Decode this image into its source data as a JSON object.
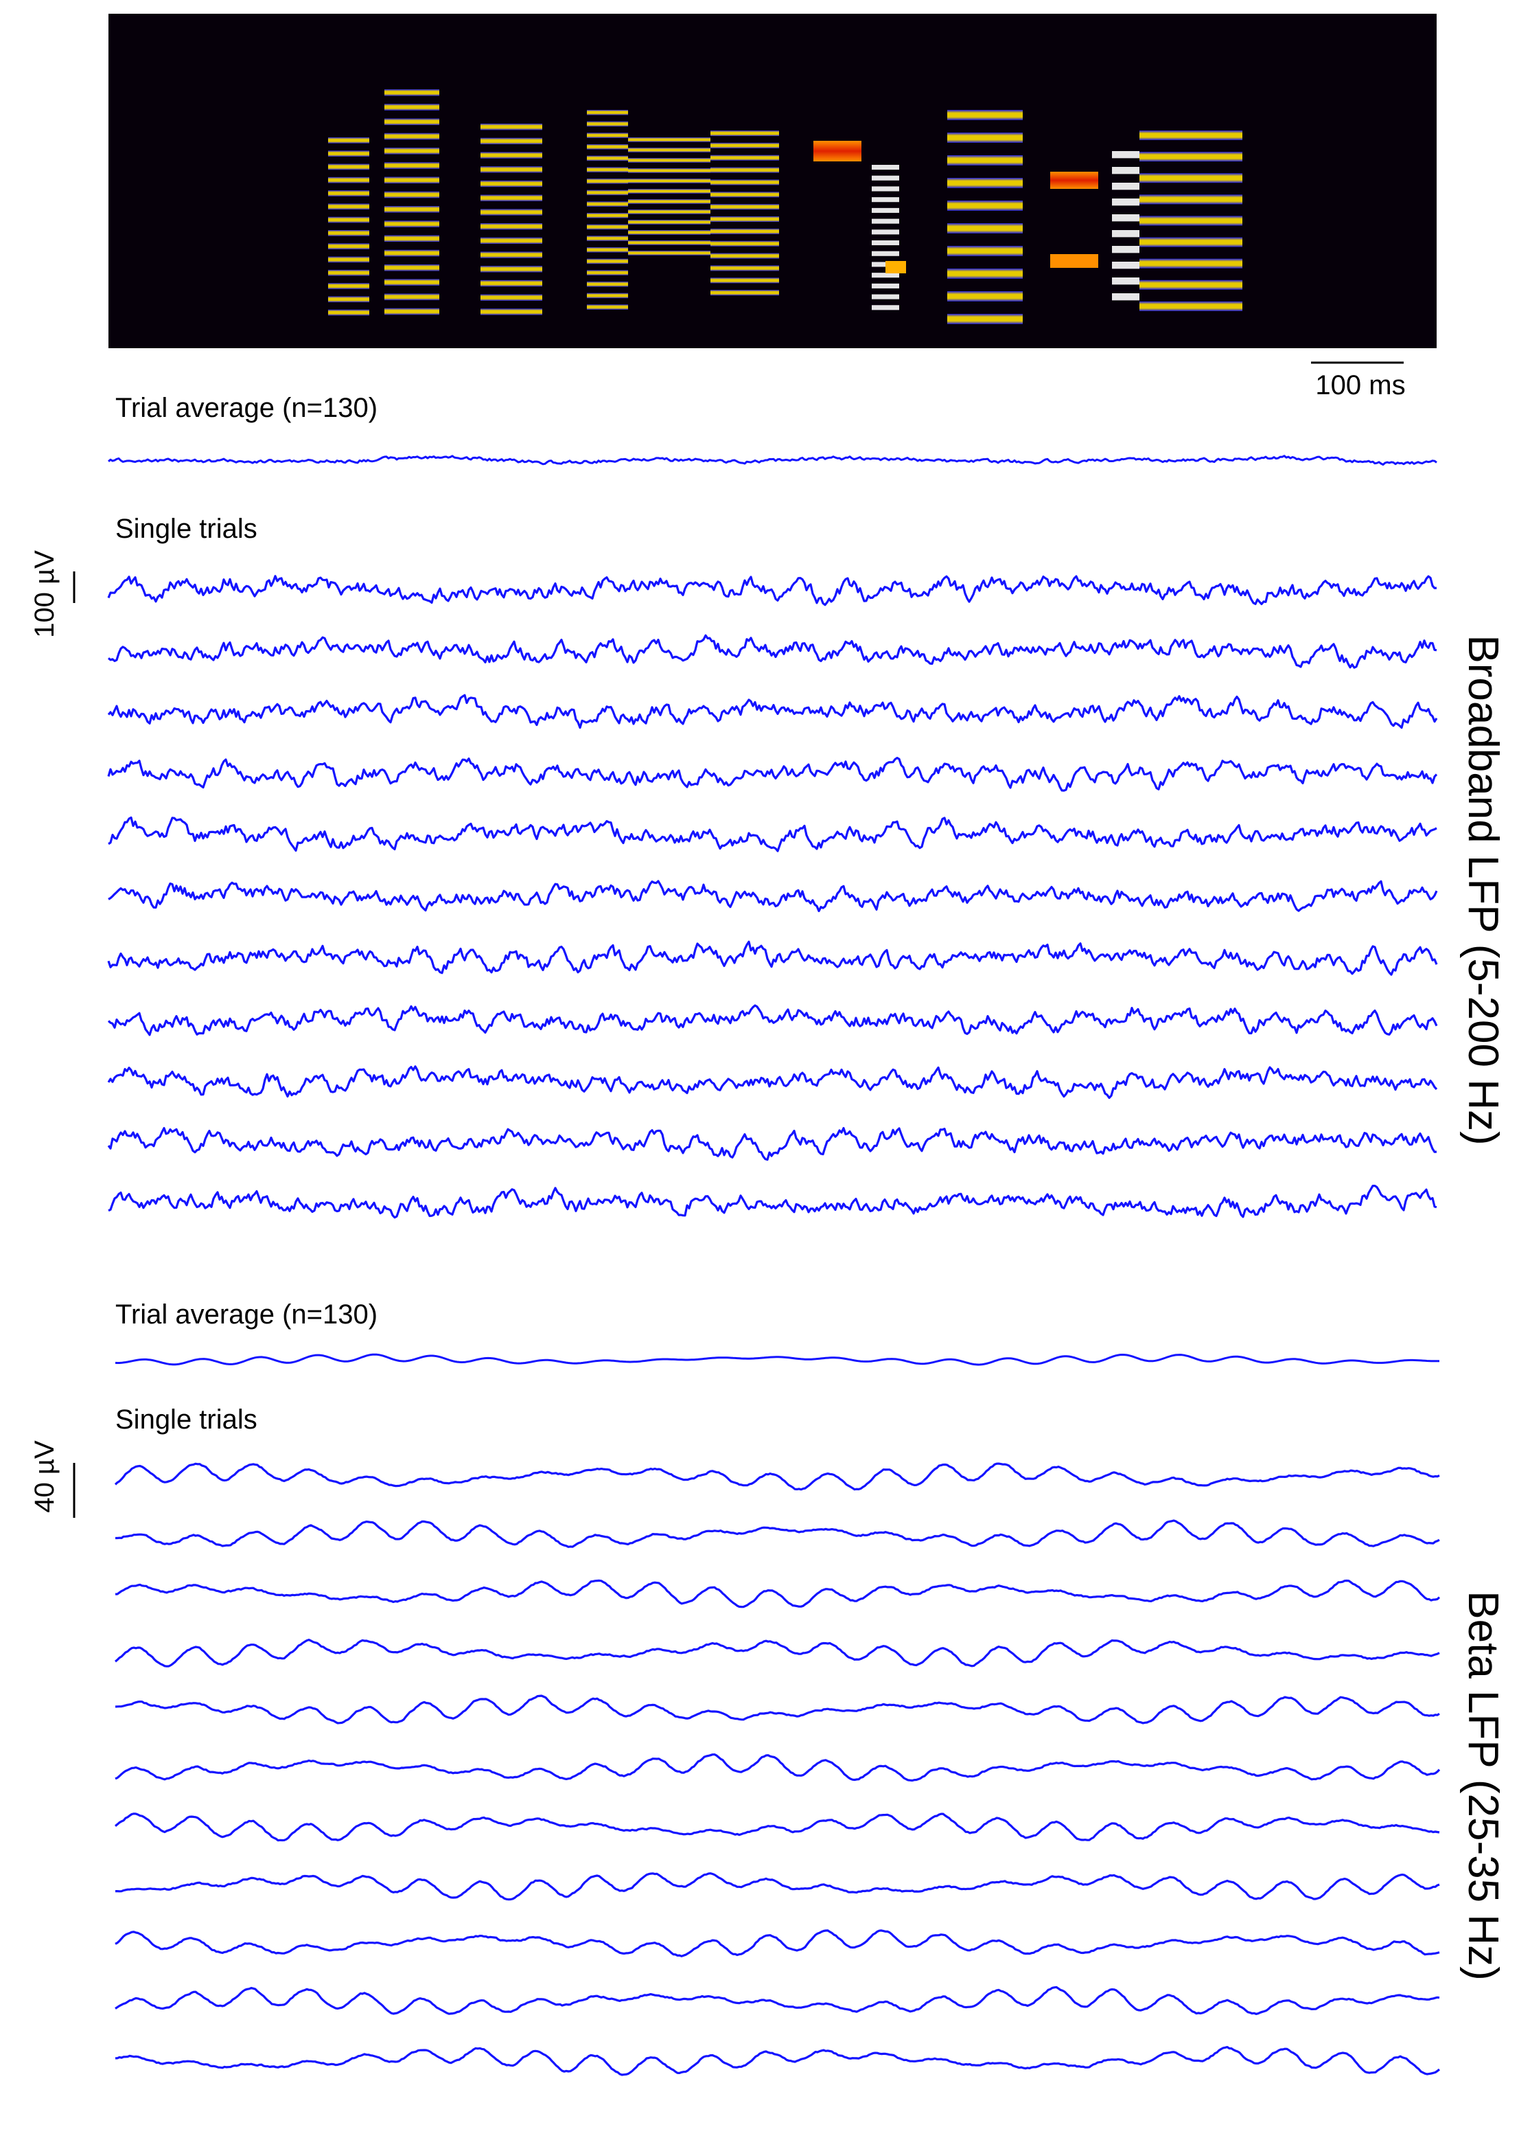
{
  "spectrogram": {
    "background": "#06000a",
    "palette": [
      "#1010ff",
      "#ffe000",
      "#ff7a00",
      "#e02000",
      "#ffffff"
    ]
  },
  "time_scale_label": "100 ms",
  "broadband": {
    "section_label": "Broadband LFP (5-200 Hz)",
    "average_label": "Trial average (n=130)",
    "single_trials_label": "Single trials",
    "scale_label": "100 µV",
    "trial_count": 11
  },
  "beta": {
    "section_label": "Beta LFP (25-35 Hz)",
    "average_label": "Trial average (n=130)",
    "single_trials_label": "Single trials",
    "scale_label": "40 µV",
    "trial_count": 11
  },
  "trace_color": "#1414ff"
}
